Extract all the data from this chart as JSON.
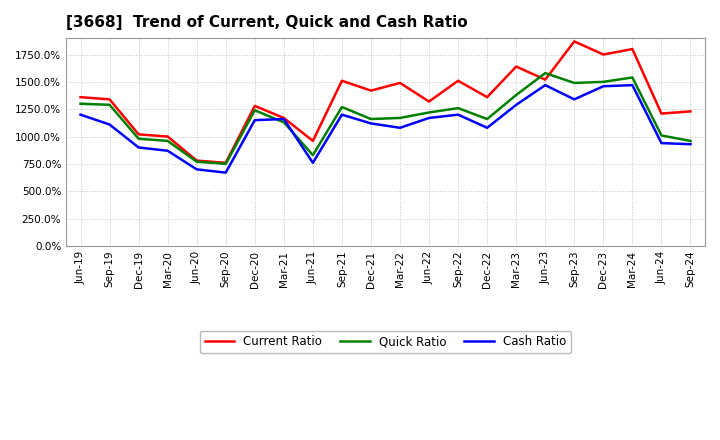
{
  "title": "[3668]  Trend of Current, Quick and Cash Ratio",
  "x_labels": [
    "Jun-19",
    "Sep-19",
    "Dec-19",
    "Mar-20",
    "Jun-20",
    "Sep-20",
    "Dec-20",
    "Mar-21",
    "Jun-21",
    "Sep-21",
    "Dec-21",
    "Mar-22",
    "Jun-22",
    "Sep-22",
    "Dec-22",
    "Mar-23",
    "Jun-23",
    "Sep-23",
    "Dec-23",
    "Mar-24",
    "Jun-24",
    "Sep-24"
  ],
  "current_ratio": [
    13.6,
    13.4,
    10.2,
    10.0,
    7.8,
    7.6,
    12.8,
    11.7,
    9.6,
    15.1,
    14.2,
    14.9,
    13.2,
    15.1,
    13.6,
    16.4,
    15.2,
    18.7,
    17.5,
    18.0,
    12.1,
    12.3
  ],
  "quick_ratio": [
    13.0,
    12.9,
    9.8,
    9.6,
    7.7,
    7.5,
    12.4,
    11.3,
    8.3,
    12.7,
    11.6,
    11.7,
    12.2,
    12.6,
    11.6,
    13.8,
    15.8,
    14.9,
    15.0,
    15.4,
    10.1,
    9.6
  ],
  "cash_ratio": [
    12.0,
    11.1,
    9.0,
    8.7,
    7.0,
    6.7,
    11.5,
    11.6,
    7.6,
    12.0,
    11.2,
    10.8,
    11.7,
    12.0,
    10.8,
    12.9,
    14.7,
    13.4,
    14.6,
    14.7,
    9.4,
    9.3
  ],
  "current_color": "#FF0000",
  "quick_color": "#008000",
  "cash_color": "#0000FF",
  "ylim_min": 0.0,
  "ylim_max": 19.0,
  "ytick_values": [
    0.0,
    2.5,
    5.0,
    7.5,
    10.0,
    12.5,
    15.0,
    17.5
  ],
  "ytick_labels": [
    "0.0%",
    "250.0%",
    "500.0%",
    "750.0%",
    "1000.0%",
    "1250.0%",
    "1500.0%",
    "1750.0%"
  ],
  "background_color": "#FFFFFF",
  "grid_color": "#BBBBBB",
  "linewidth": 1.8,
  "title_fontsize": 11,
  "tick_fontsize": 7.5,
  "legend_fontsize": 8.5
}
